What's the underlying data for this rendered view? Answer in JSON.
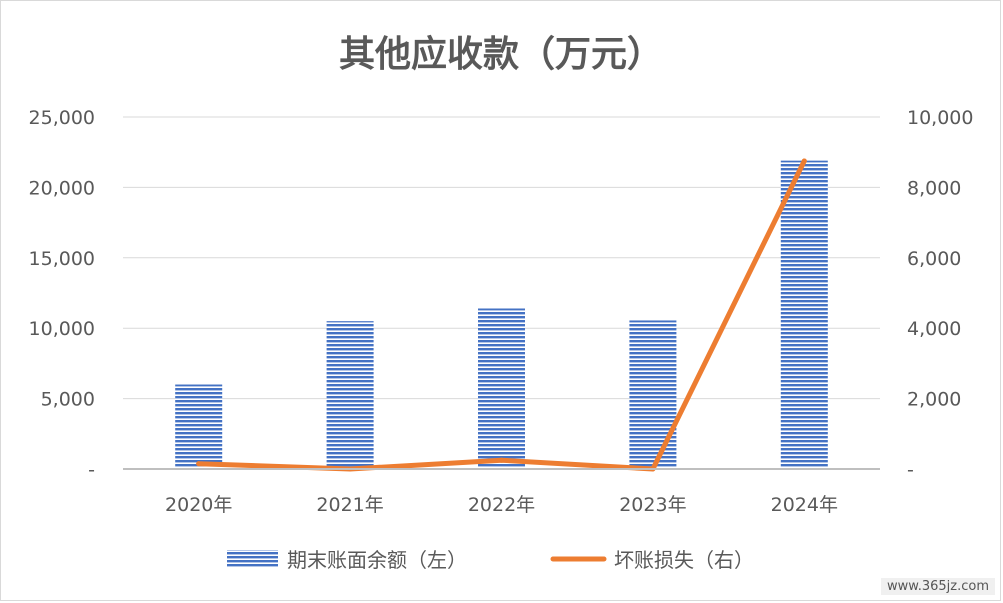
{
  "chart_data": {
    "type": "bar",
    "title": "其他应收款（万元）",
    "categories": [
      "2020年",
      "2021年",
      "2022年",
      "2023年",
      "2024年"
    ],
    "series": [
      {
        "name": "期末账面余额（左）",
        "type": "bar",
        "axis": "left",
        "values": [
          6000,
          10500,
          11400,
          10550,
          21900
        ]
      },
      {
        "name": "坏账损失（右）",
        "type": "line",
        "axis": "right",
        "values": [
          150,
          0,
          250,
          0,
          8750
        ]
      }
    ],
    "left_axis": {
      "ylim": [
        0,
        25000
      ],
      "ticks": [
        0,
        5000,
        10000,
        15000,
        20000,
        25000
      ],
      "tick_labels": [
        "-",
        "5,000",
        "10,000",
        "15,000",
        "20,000",
        "25,000"
      ]
    },
    "right_axis": {
      "ylim": [
        0,
        10000
      ],
      "ticks": [
        0,
        2000,
        4000,
        6000,
        8000,
        10000
      ],
      "tick_labels": [
        "-",
        "2,000",
        "4,000",
        "6,000",
        "8,000",
        "10,000"
      ]
    },
    "grid": true,
    "legend_position": "bottom",
    "colors": {
      "bar": "#4472c4",
      "bar_stripe": "#ffffff",
      "line": "#ed7d31",
      "grid": "#d9d9d9",
      "axis_text": "#595959",
      "title": "#595959"
    }
  },
  "watermark": "www.365jz.com"
}
